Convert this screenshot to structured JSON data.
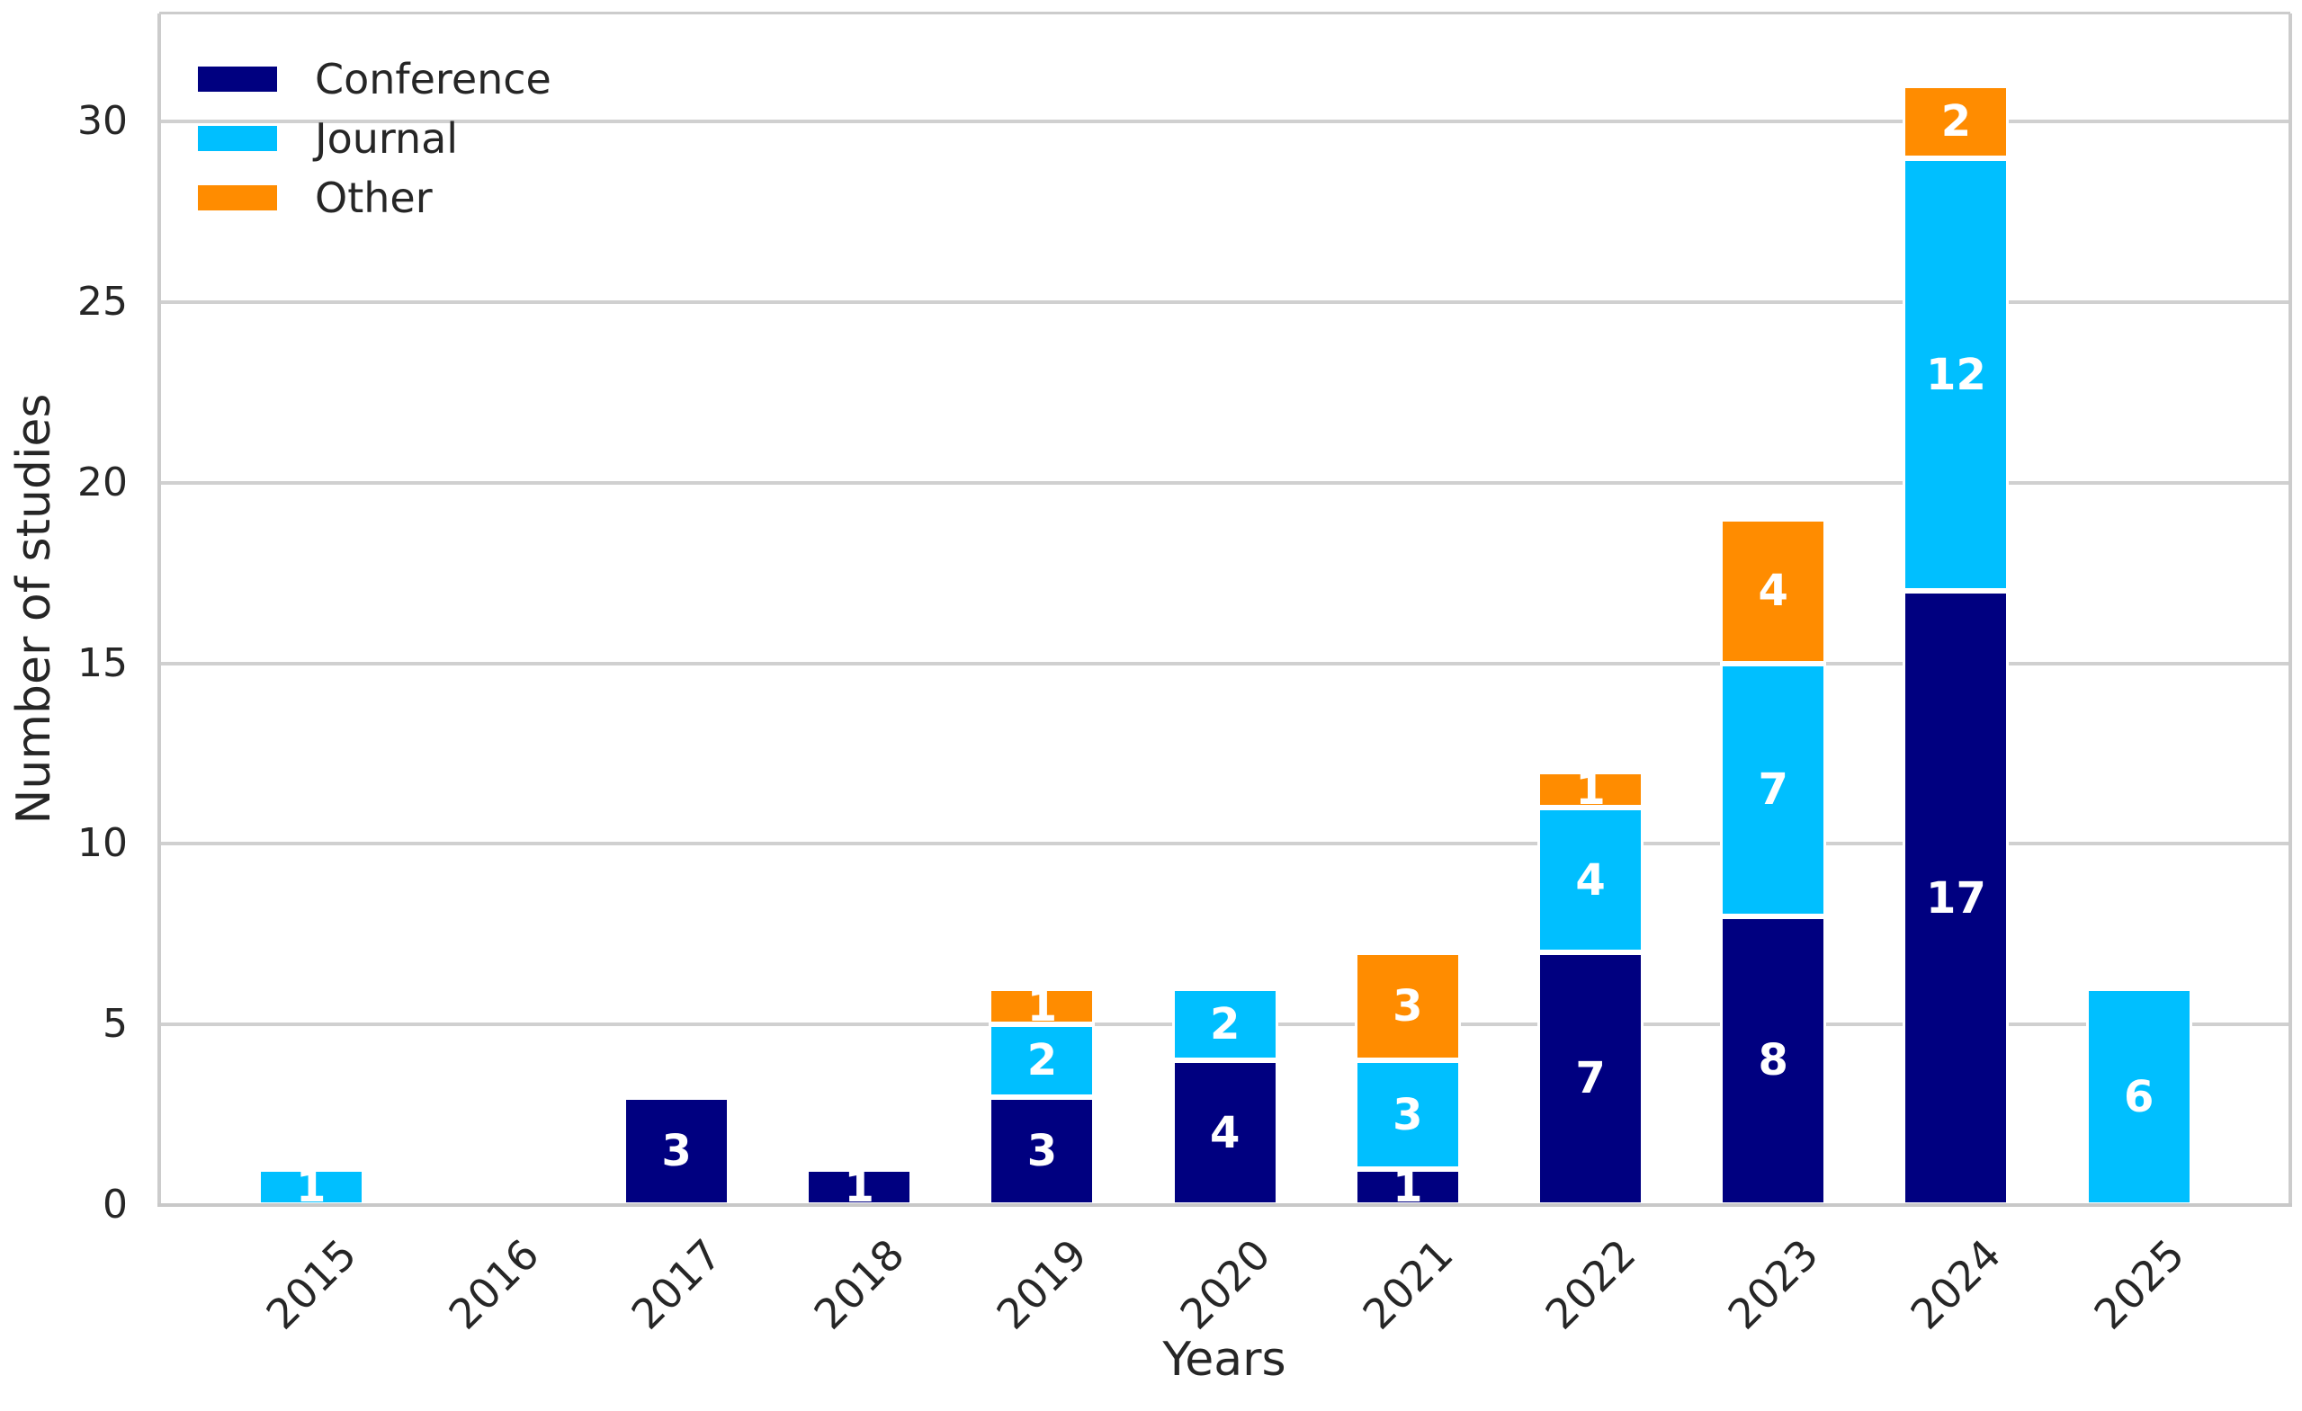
{
  "chart_data": {
    "type": "bar",
    "stacked": true,
    "title": "",
    "xlabel": "Years",
    "ylabel": "Number of studies",
    "categories": [
      "2015",
      "2016",
      "2017",
      "2018",
      "2019",
      "2020",
      "2021",
      "2022",
      "2023",
      "2024",
      "2025"
    ],
    "series": [
      {
        "name": "Conference",
        "color": "#000080",
        "values": [
          0,
          0,
          3,
          1,
          3,
          4,
          1,
          7,
          8,
          17,
          0
        ]
      },
      {
        "name": "Journal",
        "color": "#00BFFF",
        "values": [
          1,
          0,
          0,
          0,
          2,
          2,
          3,
          4,
          7,
          12,
          6
        ]
      },
      {
        "name": "Other",
        "color": "#FF8C00",
        "values": [
          0,
          0,
          0,
          0,
          1,
          0,
          3,
          1,
          4,
          2,
          0
        ]
      }
    ],
    "ylim": [
      0,
      33
    ],
    "yticks": [
      0,
      5,
      10,
      15,
      20,
      25,
      30
    ],
    "grid": true,
    "legend_position": "upper left",
    "bar_labels_shown": true,
    "colors": {
      "background": "#ffffff",
      "grid": "#d0d0d0",
      "spine": "#cccccc",
      "bottom_spine": "#c8c8c8",
      "tick_text": "#262626",
      "bar_label_text": "#ffffff"
    }
  }
}
